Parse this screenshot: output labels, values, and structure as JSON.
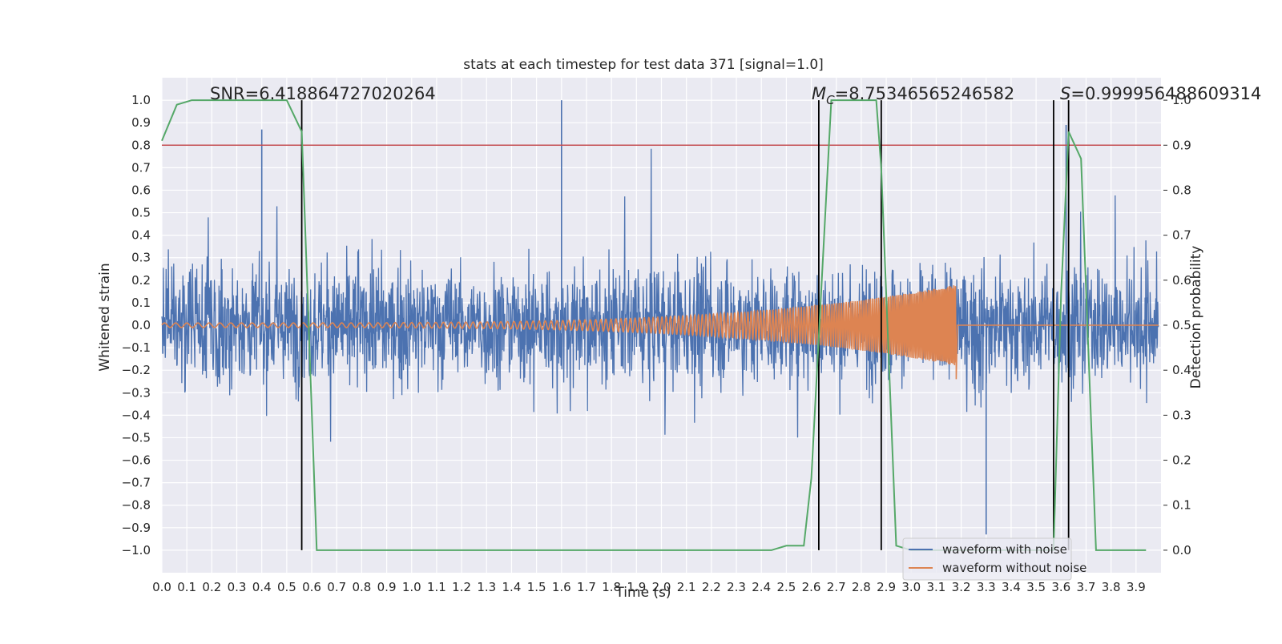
{
  "chart_data": {
    "type": "line",
    "title": "stats at each timestep for test data 371 [signal=1.0]",
    "xlabel": "Time (s)",
    "ylabel": "Whitened strain",
    "y2label": "Detection probability",
    "xlim": [
      0.0,
      4.0
    ],
    "ylim": [
      -1.1,
      1.1
    ],
    "y2lim": [
      -0.05,
      1.0
    ],
    "x_ticks": [
      "0.0",
      "0.1",
      "0.2",
      "0.3",
      "0.4",
      "0.5",
      "0.6",
      "0.7",
      "0.8",
      "0.9",
      "1.0",
      "1.1",
      "1.2",
      "1.3",
      "1.4",
      "1.5",
      "1.6",
      "1.7",
      "1.8",
      "1.9",
      "2.0",
      "2.1",
      "2.2",
      "2.3",
      "2.4",
      "2.5",
      "2.6",
      "2.7",
      "2.8",
      "2.9",
      "3.0",
      "3.1",
      "3.2",
      "3.3",
      "3.4",
      "3.5",
      "3.6",
      "3.7",
      "3.8",
      "3.9"
    ],
    "y_ticks": [
      "1.0",
      "0.9",
      "0.8",
      "0.7",
      "0.6",
      "0.5",
      "0.4",
      "0.3",
      "0.2",
      "0.1",
      "0.0",
      "−0.1",
      "−0.2",
      "−0.3",
      "−0.4",
      "−0.5",
      "−0.6",
      "−0.7",
      "−0.8",
      "−0.9",
      "−1.0"
    ],
    "y2_ticks": [
      "1.0",
      "0.9",
      "0.8",
      "0.7",
      "0.6",
      "0.5",
      "0.4",
      "0.3",
      "0.2",
      "0.1",
      "0.0"
    ],
    "grid": true,
    "legend_position": "lower-right",
    "series": [
      {
        "name": "waveform with noise",
        "color": "#4c72b0",
        "axis": "left",
        "description_values": {
          "note_range": [
            -0.93,
            1.0
          ],
          "peaks": [
            {
              "x": 0.4,
              "y": 0.87
            },
            {
              "x": 1.6,
              "y": 1.0
            },
            {
              "x": 3.62,
              "y": 0.89
            },
            {
              "x": 3.3,
              "y": -0.93
            }
          ]
        }
      },
      {
        "name": "waveform without noise",
        "color": "#dd8452",
        "axis": "left",
        "chirp": {
          "start_x": 0.0,
          "end_x": 3.18,
          "start_amplitude": 0.01,
          "end_amplitude": 0.18,
          "start_period": 0.045,
          "end_period": 0.006,
          "min_y_at_end": -0.24
        }
      },
      {
        "color": "#55a868",
        "axis": "right",
        "x": [
          0.0,
          0.06,
          0.12,
          0.18,
          0.5,
          0.56,
          0.62,
          0.68,
          0.75,
          1.0,
          1.5,
          2.0,
          2.2,
          2.4,
          2.44,
          2.5,
          2.57,
          2.6,
          2.68,
          2.75,
          2.86,
          2.88,
          2.94,
          3.0,
          3.5,
          3.55,
          3.57,
          3.6,
          3.63,
          3.68,
          3.74,
          3.8,
          3.94
        ],
        "values": [
          0.91,
          0.99,
          1.0,
          1.0,
          1.0,
          0.93,
          0.0,
          0.0,
          0.0,
          0.0,
          0.0,
          0.0,
          0.0,
          0.0,
          0.0,
          0.01,
          0.01,
          0.16,
          1.0,
          1.0,
          1.0,
          0.85,
          0.01,
          0.0,
          0.0,
          0.0,
          0.0,
          0.57,
          0.93,
          0.87,
          0.0,
          0.0,
          0.0
        ]
      }
    ],
    "threshold": {
      "y": 0.9,
      "axis": "right",
      "color": "#c44e52"
    },
    "vertical_markers": {
      "x": [
        0.56,
        2.63,
        2.88,
        3.57,
        3.63
      ],
      "color": "#000000",
      "y_range": [
        -1.0,
        1.0
      ]
    },
    "annotations": [
      {
        "text": "SNR=6.418864727020264"
      },
      {
        "prefix": "M",
        "subscript": "C",
        "text": "=8.75346565246582"
      },
      {
        "prefix": "S",
        "text": "=0.9999564886093​14"
      }
    ]
  },
  "legend": {
    "items": [
      {
        "label": "waveform with noise",
        "color": "#4c72b0"
      },
      {
        "label": "waveform without noise",
        "color": "#dd8452"
      }
    ]
  }
}
